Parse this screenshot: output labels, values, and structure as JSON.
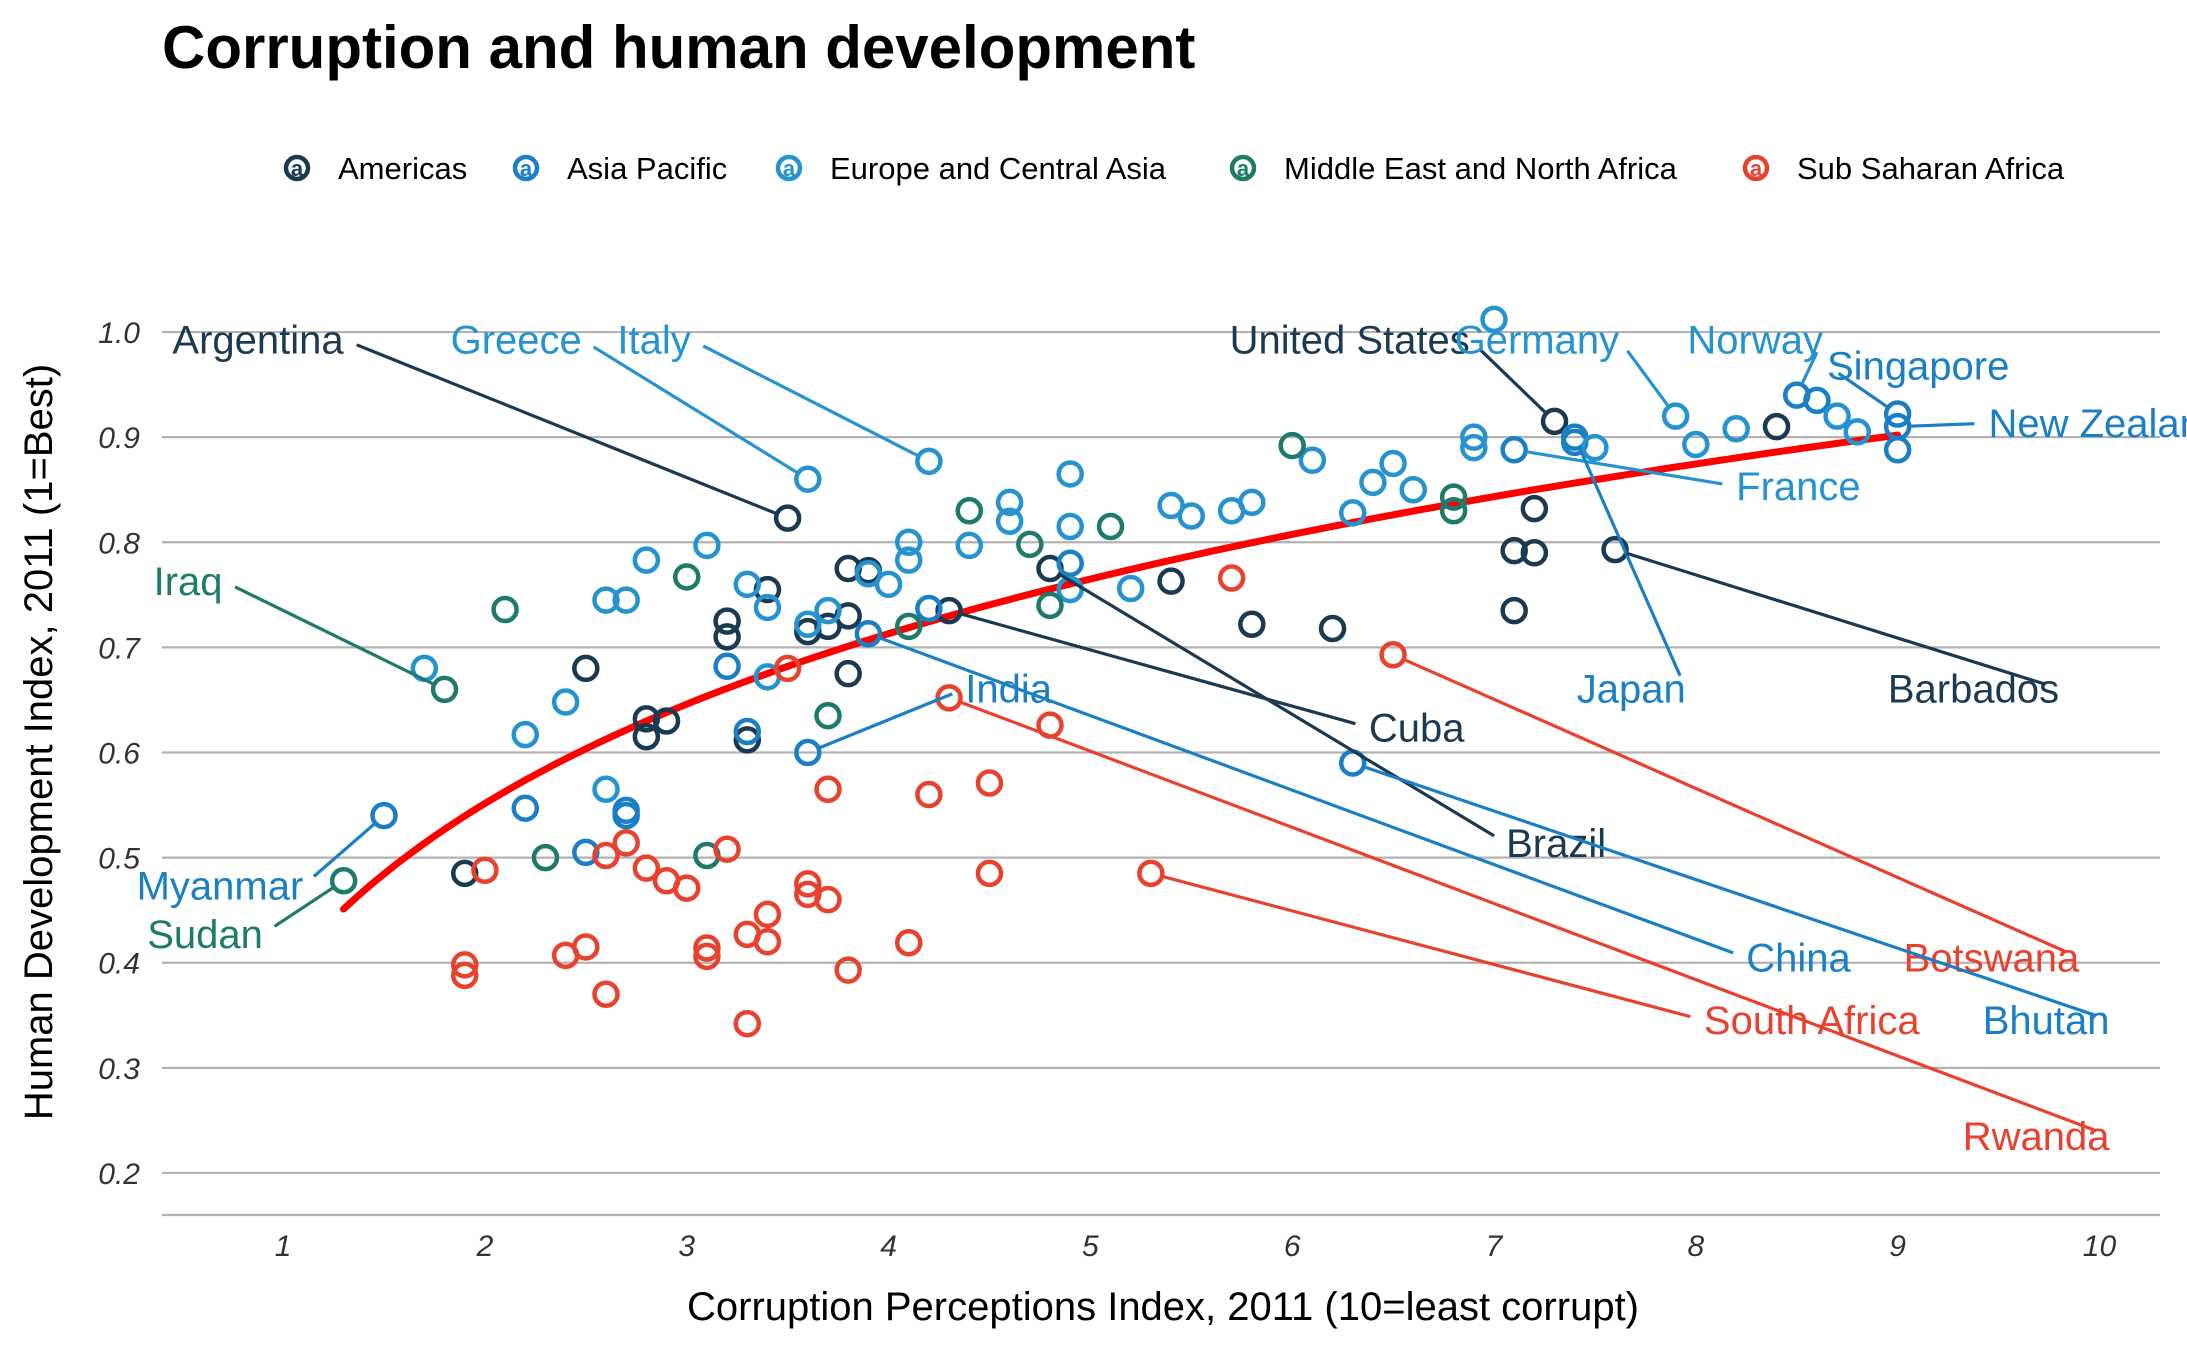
{
  "chart_data": {
    "type": "scatter",
    "title": "Corruption and human development",
    "xlabel": "Corruption Perceptions Index, 2011 (10=least corrupt)",
    "ylabel": "Human Development Index, 2011 (1=Best)",
    "xlim": [
      0.4,
      10.3
    ],
    "ylim": [
      0.16,
      1.04
    ],
    "x_ticks": [
      "1",
      "2",
      "3",
      "4",
      "5",
      "6",
      "7",
      "8",
      "9",
      "10"
    ],
    "y_ticks": [
      "0.2",
      "0.3",
      "0.4",
      "0.5",
      "0.6",
      "0.7",
      "0.8",
      "0.9",
      "1.0"
    ],
    "grid": "horizontal",
    "legend_position": "top",
    "legend_glyph": "a",
    "trend": {
      "color": "#ff0000",
      "type": "log",
      "a": 0.39,
      "b": 0.233,
      "x_from": 1.3,
      "x_to": 9.0
    },
    "series": [
      {
        "name": "Americas",
        "color": "#1a3a52",
        "points": [
          [
            1.9,
            0.485
          ],
          [
            2.5,
            0.68
          ],
          [
            2.8,
            0.632
          ],
          [
            2.8,
            0.615
          ],
          [
            2.9,
            0.63
          ],
          [
            3.2,
            0.725
          ],
          [
            3.2,
            0.71
          ],
          [
            3.3,
            0.612
          ],
          [
            3.4,
            0.755
          ],
          [
            3.5,
            0.823
          ],
          [
            3.6,
            0.715
          ],
          [
            3.7,
            0.72
          ],
          [
            3.8,
            0.775
          ],
          [
            3.8,
            0.73
          ],
          [
            3.8,
            0.675
          ],
          [
            3.9,
            0.773
          ],
          [
            4.3,
            0.735
          ],
          [
            4.8,
            0.775
          ],
          [
            5.4,
            0.763
          ],
          [
            5.8,
            0.722
          ],
          [
            6.2,
            0.718
          ],
          [
            7.1,
            0.792
          ],
          [
            7.1,
            0.735
          ],
          [
            7.2,
            0.832
          ],
          [
            7.2,
            0.79
          ],
          [
            7.3,
            0.915
          ],
          [
            7.6,
            0.793
          ],
          [
            8.4,
            0.91
          ]
        ]
      },
      {
        "name": "Asia Pacific",
        "color": "#1a7fc4",
        "points": [
          [
            1.5,
            0.54
          ],
          [
            2.2,
            0.547
          ],
          [
            2.5,
            0.505
          ],
          [
            2.7,
            0.545
          ],
          [
            2.7,
            0.54
          ],
          [
            3.2,
            0.682
          ],
          [
            3.3,
            0.62
          ],
          [
            3.6,
            0.6
          ],
          [
            3.9,
            0.713
          ],
          [
            4.2,
            0.737
          ],
          [
            4.9,
            0.78
          ],
          [
            6.3,
            0.59
          ],
          [
            7.1,
            0.888
          ],
          [
            7.4,
            0.9
          ],
          [
            7.4,
            0.895
          ],
          [
            8.5,
            0.94
          ],
          [
            8.6,
            0.935
          ],
          [
            9.0,
            0.91
          ],
          [
            9.0,
            0.888
          ],
          [
            9.0,
            0.922
          ]
        ]
      },
      {
        "name": "Europe and Central Asia",
        "color": "#2493d0",
        "points": [
          [
            1.7,
            0.68
          ],
          [
            2.2,
            0.617
          ],
          [
            2.4,
            0.648
          ],
          [
            2.6,
            0.565
          ],
          [
            2.6,
            0.745
          ],
          [
            2.7,
            0.745
          ],
          [
            2.8,
            0.783
          ],
          [
            3.1,
            0.797
          ],
          [
            3.3,
            0.76
          ],
          [
            3.4,
            0.738
          ],
          [
            3.4,
            0.672
          ],
          [
            3.6,
            0.722
          ],
          [
            3.6,
            0.86
          ],
          [
            3.7,
            0.735
          ],
          [
            3.9,
            0.77
          ],
          [
            4.0,
            0.76
          ],
          [
            4.1,
            0.8
          ],
          [
            4.1,
            0.783
          ],
          [
            4.2,
            0.877
          ],
          [
            4.4,
            0.797
          ],
          [
            4.6,
            0.838
          ],
          [
            4.6,
            0.82
          ],
          [
            4.9,
            0.865
          ],
          [
            4.9,
            0.815
          ],
          [
            4.9,
            0.755
          ],
          [
            5.2,
            0.756
          ],
          [
            5.4,
            0.835
          ],
          [
            5.5,
            0.825
          ],
          [
            5.7,
            0.83
          ],
          [
            5.8,
            0.838
          ],
          [
            6.1,
            0.878
          ],
          [
            6.3,
            0.828
          ],
          [
            6.4,
            0.857
          ],
          [
            6.5,
            0.875
          ],
          [
            6.6,
            0.85
          ],
          [
            6.9,
            0.9
          ],
          [
            6.9,
            0.89
          ],
          [
            7.0,
            1.012
          ],
          [
            7.5,
            0.89
          ],
          [
            7.9,
            0.92
          ],
          [
            8.0,
            0.893
          ],
          [
            8.2,
            0.908
          ],
          [
            8.7,
            0.92
          ],
          [
            8.8,
            0.905
          ]
        ]
      },
      {
        "name": "Middle East and North Africa",
        "color": "#1e7a6a",
        "points": [
          [
            1.3,
            0.478
          ],
          [
            1.8,
            0.66
          ],
          [
            2.1,
            0.736
          ],
          [
            2.3,
            0.5
          ],
          [
            3.0,
            0.767
          ],
          [
            3.1,
            0.502
          ],
          [
            3.7,
            0.635
          ],
          [
            4.1,
            0.72
          ],
          [
            4.4,
            0.83
          ],
          [
            4.7,
            0.798
          ],
          [
            4.8,
            0.74
          ],
          [
            5.1,
            0.815
          ],
          [
            6.0,
            0.892
          ],
          [
            6.8,
            0.843
          ],
          [
            6.8,
            0.83
          ]
        ]
      },
      {
        "name": "Sub Saharan Africa",
        "color": "#e8412e",
        "points": [
          [
            1.9,
            0.398
          ],
          [
            1.9,
            0.388
          ],
          [
            2.0,
            0.488
          ],
          [
            2.4,
            0.407
          ],
          [
            2.5,
            0.415
          ],
          [
            2.6,
            0.37
          ],
          [
            2.6,
            0.502
          ],
          [
            2.7,
            0.514
          ],
          [
            2.8,
            0.49
          ],
          [
            2.9,
            0.478
          ],
          [
            3.0,
            0.471
          ],
          [
            3.1,
            0.414
          ],
          [
            3.1,
            0.406
          ],
          [
            3.2,
            0.508
          ],
          [
            3.3,
            0.342
          ],
          [
            3.3,
            0.427
          ],
          [
            3.4,
            0.446
          ],
          [
            3.4,
            0.42
          ],
          [
            3.5,
            0.68
          ],
          [
            3.6,
            0.475
          ],
          [
            3.6,
            0.465
          ],
          [
            3.7,
            0.565
          ],
          [
            3.7,
            0.46
          ],
          [
            3.8,
            0.393
          ],
          [
            4.1,
            0.419
          ],
          [
            4.2,
            0.56
          ],
          [
            4.3,
            0.652
          ],
          [
            4.5,
            0.571
          ],
          [
            4.5,
            0.485
          ],
          [
            4.8,
            0.626
          ],
          [
            5.3,
            0.485
          ],
          [
            5.7,
            0.766
          ],
          [
            6.5,
            0.693
          ]
        ]
      }
    ],
    "labels": [
      {
        "text": "Argentina",
        "series": 0,
        "point": [
          3.5,
          0.823
        ],
        "anchor": [
          1.3,
          0.9795
        ],
        "align": "end"
      },
      {
        "text": "Greece",
        "series": 2,
        "point": [
          3.6,
          0.86
        ],
        "anchor": [
          2.48,
          0.9795
        ],
        "align": "end"
      },
      {
        "text": "Italy",
        "series": 2,
        "point": [
          4.2,
          0.877
        ],
        "anchor": [
          3.02,
          0.9795
        ],
        "align": "end"
      },
      {
        "text": "United States",
        "series": 0,
        "point": [
          7.3,
          0.915
        ],
        "anchor": [
          6.88,
          0.9795
        ],
        "align": "end"
      },
      {
        "text": "Germany",
        "series": 2,
        "point": [
          7.9,
          0.92
        ],
        "anchor": [
          7.62,
          0.9795
        ],
        "align": "end"
      },
      {
        "text": "Norway",
        "series": 2,
        "point": [
          8.5,
          0.94
        ],
        "anchor": [
          8.63,
          0.9795
        ],
        "align": "end"
      },
      {
        "text": "Singapore",
        "series": 1,
        "point": [
          9.0,
          0.922
        ],
        "anchor": [
          8.65,
          0.955
        ],
        "align": "start"
      },
      {
        "text": "New Zealand",
        "series": 1,
        "point": [
          9.0,
          0.91
        ],
        "anchor": [
          9.45,
          0.9
        ],
        "align": "start"
      },
      {
        "text": "France",
        "series": 2,
        "point": [
          7.1,
          0.888
        ],
        "anchor": [
          8.2,
          0.84
        ],
        "align": "start"
      },
      {
        "text": "Iraq",
        "series": 3,
        "point": [
          1.8,
          0.66
        ],
        "anchor": [
          0.7,
          0.75
        ],
        "align": "end"
      },
      {
        "text": "Japan",
        "series": 1,
        "point": [
          7.4,
          0.9
        ],
        "anchor": [
          7.95,
          0.6475
        ],
        "align": "end"
      },
      {
        "text": "Barbados",
        "series": 0,
        "point": [
          7.6,
          0.793
        ],
        "anchor": [
          9.8,
          0.6475
        ],
        "align": "end"
      },
      {
        "text": "India",
        "series": 1,
        "point": [
          3.6,
          0.6
        ],
        "anchor": [
          4.38,
          0.6475
        ],
        "align": "start"
      },
      {
        "text": "Cuba",
        "series": 0,
        "point": [
          4.3,
          0.735
        ],
        "anchor": [
          6.38,
          0.6105
        ],
        "align": "start"
      },
      {
        "text": "Myanmar",
        "series": 1,
        "point": [
          1.5,
          0.54
        ],
        "anchor": [
          1.1,
          0.46
        ],
        "align": "end"
      },
      {
        "text": "Sudan",
        "series": 3,
        "point": [
          1.3,
          0.478
        ],
        "anchor": [
          0.9,
          0.414
        ],
        "align": "end"
      },
      {
        "text": "Brazil",
        "series": 0,
        "point": [
          4.8,
          0.775
        ],
        "anchor": [
          7.06,
          0.5005
        ],
        "align": "start"
      },
      {
        "text": "China",
        "series": 1,
        "point": [
          3.9,
          0.713
        ],
        "anchor": [
          8.25,
          0.3915
        ],
        "align": "start"
      },
      {
        "text": "Botswana",
        "series": 4,
        "point": [
          6.5,
          0.693
        ],
        "anchor": [
          9.9,
          0.3915
        ],
        "align": "end"
      },
      {
        "text": "South Africa",
        "series": 4,
        "point": [
          5.3,
          0.485
        ],
        "anchor": [
          8.04,
          0.332
        ],
        "align": "start"
      },
      {
        "text": "Bhutan",
        "series": 1,
        "point": [
          6.3,
          0.59
        ],
        "anchor": [
          10.05,
          0.332
        ],
        "align": "end"
      },
      {
        "text": "Rwanda",
        "series": 4,
        "point": [
          4.3,
          0.652
        ],
        "anchor": [
          10.05,
          0.222
        ],
        "align": "end"
      }
    ]
  }
}
